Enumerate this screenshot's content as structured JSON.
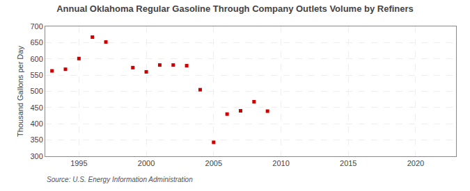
{
  "chart_data": {
    "type": "scatter",
    "title": "Annual Oklahoma Regular Gasoline Through Company Outlets Volume by Refiners",
    "y_label": "Thousand Gallons per Day",
    "annotations": [
      "Source: U.S. Energy Information Administration"
    ],
    "x": [
      1993,
      1994,
      1995,
      1996,
      1997,
      1999,
      2000,
      2001,
      2002,
      2003,
      2004,
      2005,
      2006,
      2007,
      2008,
      2009
    ],
    "values": [
      563,
      568,
      601,
      667,
      652,
      573,
      560,
      581,
      581,
      579,
      505,
      343,
      430,
      440,
      468,
      439
    ],
    "color": "#cc0000",
    "marker": "square",
    "xlim": [
      1992.5,
      2023
    ],
    "xticks": [
      1995,
      2000,
      2005,
      2010,
      2015,
      2020
    ],
    "ylim": [
      300,
      700
    ],
    "yticks": [
      300,
      350,
      400,
      450,
      500,
      550,
      600,
      650,
      700
    ],
    "grid": true
  }
}
